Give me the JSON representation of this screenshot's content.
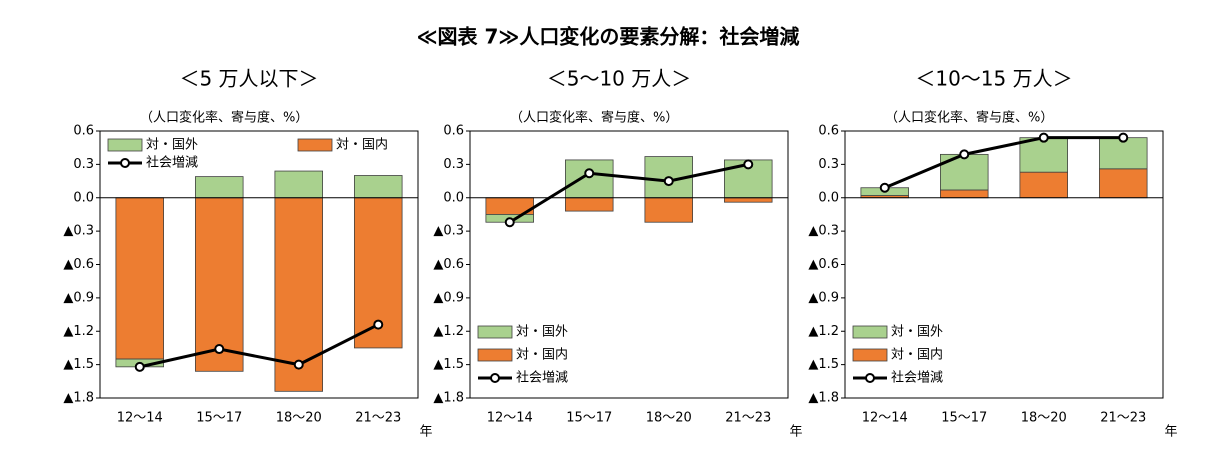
{
  "title": "≪図表 7≫人口変化の要素分解：社会増減",
  "chart_data": [
    {
      "type": "bar",
      "subtitle": "＜5 万人以下＞",
      "ylabel": "（人口変化率、寄与度、%）",
      "xlabel": "年",
      "categories": [
        "12～14",
        "15～17",
        "18～20",
        "21～23"
      ],
      "series": [
        {
          "name": "対・国外",
          "color": "#a9d18e",
          "values": [
            -0.07,
            0.19,
            0.24,
            0.2
          ]
        },
        {
          "name": "対・国内",
          "color": "#ed7d31",
          "values": [
            -1.45,
            -1.56,
            -1.74,
            -1.35
          ]
        },
        {
          "name": "社会増減",
          "type": "line",
          "color": "#000000",
          "values": [
            -1.52,
            -1.36,
            -1.5,
            -1.14
          ]
        }
      ],
      "ylim": [
        -1.8,
        0.6
      ],
      "yticks": [
        0.6,
        0.3,
        {
          "value": 0,
          "label": "0.0"
        },
        {
          "value": -0.3,
          "label": "▲0.3"
        },
        {
          "value": -0.6,
          "label": "▲0.6"
        },
        {
          "value": -0.9,
          "label": "▲0.9"
        },
        {
          "value": -1.2,
          "label": "▲1.2"
        },
        {
          "value": -1.5,
          "label": "▲1.5"
        },
        {
          "value": -1.8,
          "label": "▲1.8"
        }
      ],
      "stacked": true,
      "legend": "upper left"
    },
    {
      "type": "bar",
      "subtitle": "＜5～10 万人＞",
      "ylabel": "（人口変化率、寄与度、%）",
      "xlabel": "年",
      "categories": [
        "12～14",
        "15～17",
        "18～20",
        "21～23"
      ],
      "series": [
        {
          "name": "対・国外",
          "color": "#a9d18e",
          "values": [
            -0.07,
            0.34,
            0.37,
            0.34
          ]
        },
        {
          "name": "対・国内",
          "color": "#ed7d31",
          "values": [
            -0.15,
            -0.12,
            -0.22,
            -0.04
          ]
        },
        {
          "name": "社会増減",
          "type": "line",
          "color": "#000000",
          "values": [
            -0.22,
            0.22,
            0.15,
            0.3
          ]
        }
      ],
      "ylim": [
        -1.8,
        0.6
      ],
      "yticks": [
        0.6,
        0.3,
        {
          "value": 0,
          "label": "0.0"
        },
        {
          "value": -0.3,
          "label": "▲0.3"
        },
        {
          "value": -0.6,
          "label": "▲0.6"
        },
        {
          "value": -0.9,
          "label": "▲0.9"
        },
        {
          "value": -1.2,
          "label": "▲1.2"
        },
        {
          "value": -1.5,
          "label": "▲1.5"
        },
        {
          "value": -1.8,
          "label": "▲1.8"
        }
      ],
      "stacked": true,
      "legend": "lower left"
    },
    {
      "type": "bar",
      "subtitle": "＜10～15 万人＞",
      "ylabel": "（人口変化率、寄与度、%）",
      "xlabel": "年",
      "categories": [
        "12～14",
        "15～17",
        "18～20",
        "21～23"
      ],
      "series": [
        {
          "name": "対・国外",
          "color": "#a9d18e",
          "values": [
            0.07,
            0.32,
            0.31,
            0.28
          ]
        },
        {
          "name": "対・国内",
          "color": "#ed7d31",
          "values": [
            0.02,
            0.07,
            0.23,
            0.26
          ]
        },
        {
          "name": "社会増減",
          "type": "line",
          "color": "#000000",
          "values": [
            0.09,
            0.39,
            0.54,
            0.54
          ]
        }
      ],
      "ylim": [
        -1.8,
        0.6
      ],
      "yticks": [
        0.6,
        0.3,
        {
          "value": 0,
          "label": "0.0"
        },
        {
          "value": -0.3,
          "label": "▲0.3"
        },
        {
          "value": -0.6,
          "label": "▲0.6"
        },
        {
          "value": -0.9,
          "label": "▲0.9"
        },
        {
          "value": -1.2,
          "label": "▲1.2"
        },
        {
          "value": -1.5,
          "label": "▲1.5"
        },
        {
          "value": -1.8,
          "label": "▲1.8"
        }
      ],
      "stacked": true,
      "legend": "lower left"
    }
  ]
}
